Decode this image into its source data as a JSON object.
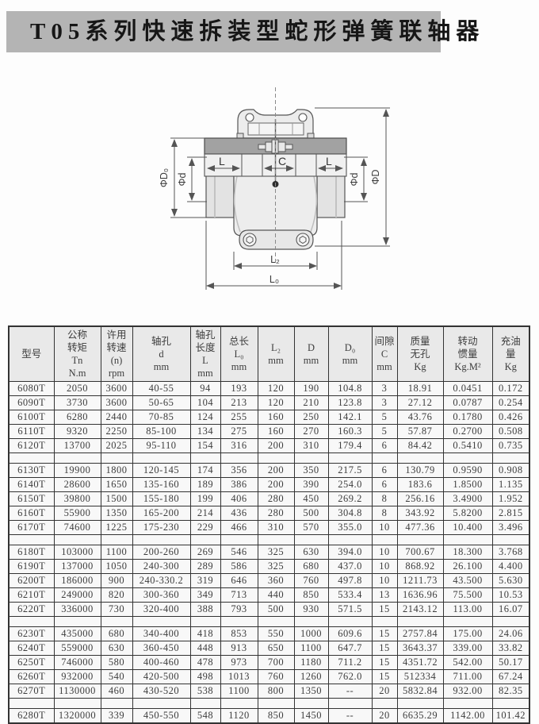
{
  "page": {
    "title": "T05系列快速拆装型蛇形弹簧联轴器"
  },
  "diagram": {
    "labels": {
      "phi_D0": "ΦD₀",
      "phi_d_left": "Φd",
      "L_left": "L",
      "C": "C",
      "L_right": "L",
      "phi_d_right": "Φd",
      "phi_D": "ΦD",
      "L2": "L₂",
      "L0": "L₀"
    }
  },
  "table": {
    "headers": [
      {
        "id": "model",
        "lines": [
          "型号"
        ]
      },
      {
        "id": "torque",
        "lines": [
          "公称",
          "转矩",
          "Tn",
          "N.m"
        ]
      },
      {
        "id": "speed",
        "lines": [
          "许用",
          "转速",
          "(n)",
          "rpm"
        ]
      },
      {
        "id": "bore",
        "lines": [
          "轴孔",
          "d",
          "mm"
        ]
      },
      {
        "id": "bore-length",
        "lines": [
          "轴孔",
          "长度",
          "L",
          "mm"
        ]
      },
      {
        "id": "total-length",
        "lines": [
          "总长",
          "L₀",
          "mm"
        ]
      },
      {
        "id": "l2",
        "lines": [
          "L₂",
          "mm"
        ]
      },
      {
        "id": "d-dia",
        "lines": [
          "D",
          "mm"
        ]
      },
      {
        "id": "d0-dia",
        "lines": [
          "D₀",
          "mm"
        ]
      },
      {
        "id": "clearance",
        "lines": [
          "间隙",
          "C",
          "mm"
        ]
      },
      {
        "id": "mass",
        "lines": [
          "质量",
          "无孔",
          "Kg"
        ]
      },
      {
        "id": "inertia",
        "lines": [
          "转动",
          "惯量",
          "Kg.M²"
        ]
      },
      {
        "id": "oil",
        "lines": [
          "充油",
          "量",
          "Kg"
        ]
      }
    ],
    "groups": [
      [
        [
          "6080T",
          "2050",
          "3600",
          "40-55",
          "94",
          "193",
          "120",
          "190",
          "104.8",
          "3",
          "18.91",
          "0.0451",
          "0.172"
        ],
        [
          "6090T",
          "3730",
          "3600",
          "50-65",
          "104",
          "213",
          "120",
          "210",
          "123.8",
          "3",
          "27.12",
          "0.0787",
          "0.254"
        ],
        [
          "6100T",
          "6280",
          "2440",
          "70-85",
          "124",
          "255",
          "160",
          "250",
          "142.1",
          "5",
          "43.76",
          "0.1780",
          "0.426"
        ],
        [
          "6110T",
          "9320",
          "2250",
          "85-100",
          "134",
          "275",
          "160",
          "270",
          "160.3",
          "5",
          "57.87",
          "0.2700",
          "0.508"
        ],
        [
          "6120T",
          "13700",
          "2025",
          "95-110",
          "154",
          "316",
          "200",
          "310",
          "179.4",
          "6",
          "84.42",
          "0.5410",
          "0.735"
        ]
      ],
      [
        [
          "6130T",
          "19900",
          "1800",
          "120-145",
          "174",
          "356",
          "200",
          "350",
          "217.5",
          "6",
          "130.79",
          "0.9590",
          "0.908"
        ],
        [
          "6140T",
          "28600",
          "1650",
          "135-160",
          "189",
          "386",
          "200",
          "390",
          "254.0",
          "6",
          "183.6",
          "1.8500",
          "1.135"
        ],
        [
          "6150T",
          "39800",
          "1500",
          "155-180",
          "199",
          "406",
          "280",
          "450",
          "269.2",
          "8",
          "256.16",
          "3.4900",
          "1.952"
        ],
        [
          "6160T",
          "55900",
          "1350",
          "165-200",
          "214",
          "436",
          "280",
          "500",
          "304.8",
          "8",
          "343.92",
          "5.8200",
          "2.815"
        ],
        [
          "6170T",
          "74600",
          "1225",
          "175-230",
          "229",
          "466",
          "310",
          "570",
          "355.0",
          "10",
          "477.36",
          "10.400",
          "3.496"
        ]
      ],
      [
        [
          "6180T",
          "103000",
          "1100",
          "200-260",
          "269",
          "546",
          "325",
          "630",
          "394.0",
          "10",
          "700.67",
          "18.300",
          "3.768"
        ],
        [
          "6190T",
          "137000",
          "1050",
          "240-300",
          "289",
          "586",
          "325",
          "680",
          "437.0",
          "10",
          "868.92",
          "26.100",
          "4.400"
        ],
        [
          "6200T",
          "186000",
          "900",
          "240-330.2",
          "319",
          "646",
          "360",
          "760",
          "497.8",
          "10",
          "1211.73",
          "43.500",
          "5.630"
        ],
        [
          "6210T",
          "249000",
          "820",
          "300-360",
          "349",
          "713",
          "440",
          "850",
          "533.4",
          "13",
          "1636.96",
          "75.500",
          "10.53"
        ],
        [
          "6220T",
          "336000",
          "730",
          "320-400",
          "388",
          "793",
          "500",
          "930",
          "571.5",
          "15",
          "2143.12",
          "113.00",
          "16.07"
        ]
      ],
      [
        [
          "6230T",
          "435000",
          "680",
          "340-400",
          "418",
          "853",
          "550",
          "1000",
          "609.6",
          "15",
          "2757.84",
          "175.00",
          "24.06"
        ],
        [
          "6240T",
          "559000",
          "630",
          "360-450",
          "448",
          "913",
          "650",
          "1100",
          "647.7",
          "15",
          "3643.37",
          "339.00",
          "33.82"
        ],
        [
          "6250T",
          "746000",
          "580",
          "400-460",
          "478",
          "973",
          "700",
          "1180",
          "711.2",
          "15",
          "4351.72",
          "542.00",
          "50.17"
        ],
        [
          "6260T",
          "932000",
          "540",
          "420-500",
          "498",
          "1013",
          "760",
          "1260",
          "762.0",
          "15",
          "512334",
          "711.00",
          "67.24"
        ],
        [
          "6270T",
          "1130000",
          "460",
          "430-520",
          "538",
          "1100",
          "800",
          "1350",
          "--",
          "20",
          "5832.84",
          "932.00",
          "82.35"
        ]
      ],
      [
        [
          "6280T",
          "1320000",
          "339",
          "450-550",
          "548",
          "1120",
          "850",
          "1450",
          "--",
          "20",
          "6635.29",
          "1142.00",
          "101.42"
        ]
      ]
    ]
  }
}
